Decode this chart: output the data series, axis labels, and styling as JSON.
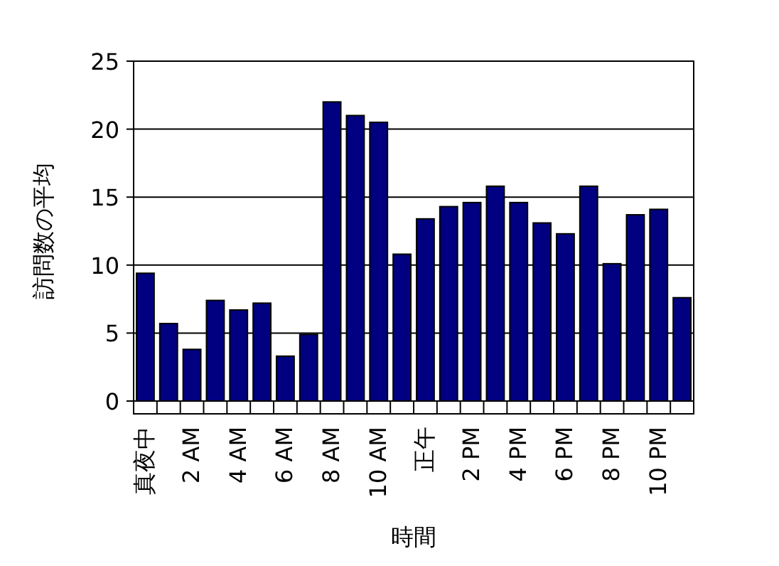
{
  "chart_data": {
    "type": "bar",
    "xlabel": "時間",
    "ylabel": "訪問数の平均",
    "categories": [
      "真夜中",
      null,
      "2 AM",
      null,
      "4 AM",
      null,
      "6 AM",
      null,
      "8 AM",
      null,
      "10 AM",
      null,
      "正午",
      null,
      "2 PM",
      null,
      "4 PM",
      null,
      "6 PM",
      null,
      "8 PM",
      null,
      "10 PM",
      null
    ],
    "values": [
      9.4,
      5.7,
      3.8,
      7.4,
      6.7,
      7.2,
      3.3,
      4.9,
      22.0,
      21.0,
      20.5,
      10.8,
      13.4,
      14.3,
      14.6,
      15.8,
      14.6,
      13.1,
      12.3,
      15.8,
      10.1,
      13.7,
      14.1,
      7.6
    ],
    "color": "#000080",
    "ylim": [
      0,
      25
    ],
    "yticks": [
      0,
      5,
      10,
      15,
      20,
      25
    ],
    "grid": "y"
  }
}
